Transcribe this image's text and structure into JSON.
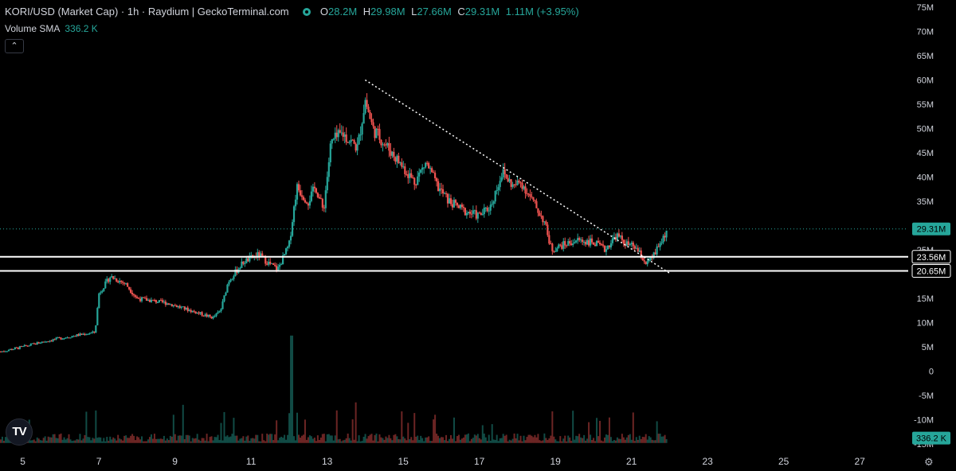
{
  "header": {
    "title": "KORI/USD (Market Cap) · 1h · Raydium | GeckoTerminal.com",
    "open_label": "O",
    "open_value": "28.2M",
    "high_label": "H",
    "high_value": "29.98M",
    "low_label": "L",
    "low_value": "27.66M",
    "close_label": "C",
    "close_value": "29.31M",
    "change_value": "1.11M (+3.95%)"
  },
  "volume_indicator": {
    "label": "Volume SMA",
    "value": "336.2 K"
  },
  "collapse_icon": "chevron-up-icon",
  "logo_text": "TV",
  "colors": {
    "up": "#26a69a",
    "down": "#ef5350",
    "background": "#000000",
    "trendline": "#ffffff"
  },
  "chart_data": {
    "type": "candlestick",
    "y_unit": "USD market cap",
    "y_ticks": [
      "75M",
      "70M",
      "65M",
      "60M",
      "55M",
      "50M",
      "45M",
      "40M",
      "35M",
      "30M",
      "25M",
      "15M",
      "10M",
      "5M",
      "0",
      "-5M",
      "-10M",
      "-15M"
    ],
    "ylim": [
      -15,
      75
    ],
    "x_ticks": [
      "5",
      "7",
      "9",
      "11",
      "13",
      "15",
      "17",
      "19",
      "21",
      "23",
      "25",
      "27"
    ],
    "x_range_days": [
      4.4,
      28.4
    ],
    "price_labels": [
      {
        "text": "29.31M",
        "value": 29.31,
        "style": "current"
      },
      {
        "text": "23.56M",
        "value": 23.56,
        "style": "horizontal-line"
      },
      {
        "text": "20.65M",
        "value": 20.65,
        "style": "horizontal-line"
      }
    ],
    "volume_label": "336.2 K",
    "trendline": {
      "from": [
        14.0,
        60.0
      ],
      "to": [
        22.0,
        20.2
      ],
      "style": "dotted"
    },
    "ohlc_anchors": [
      [
        4.4,
        4.0
      ],
      [
        5.0,
        5.0
      ],
      [
        5.5,
        6.0
      ],
      [
        6.0,
        6.8
      ],
      [
        6.5,
        7.5
      ],
      [
        6.9,
        8.0
      ],
      [
        7.0,
        16.0
      ],
      [
        7.3,
        19.5
      ],
      [
        7.7,
        18.0
      ],
      [
        8.0,
        15.0
      ],
      [
        8.4,
        14.5
      ],
      [
        8.8,
        14.0
      ],
      [
        9.2,
        13.0
      ],
      [
        9.6,
        12.0
      ],
      [
        10.0,
        11.0
      ],
      [
        10.2,
        12.5
      ],
      [
        10.4,
        18.5
      ],
      [
        10.8,
        22.5
      ],
      [
        11.2,
        24.0
      ],
      [
        11.5,
        22.0
      ],
      [
        11.7,
        21.0
      ],
      [
        12.0,
        26.0
      ],
      [
        12.2,
        38.0
      ],
      [
        12.5,
        35.0
      ],
      [
        12.7,
        38.0
      ],
      [
        12.9,
        33.0
      ],
      [
        13.1,
        47.0
      ],
      [
        13.4,
        49.0
      ],
      [
        13.8,
        46.0
      ],
      [
        14.0,
        56.0
      ],
      [
        14.2,
        50.0
      ],
      [
        14.4,
        48.0
      ],
      [
        14.7,
        45.0
      ],
      [
        15.0,
        42.0
      ],
      [
        15.3,
        39.0
      ],
      [
        15.6,
        43.0
      ],
      [
        15.9,
        38.0
      ],
      [
        16.2,
        35.0
      ],
      [
        16.6,
        33.0
      ],
      [
        17.0,
        32.0
      ],
      [
        17.3,
        34.0
      ],
      [
        17.6,
        41.0
      ],
      [
        17.9,
        38.0
      ],
      [
        18.1,
        39.0
      ],
      [
        18.4,
        35.0
      ],
      [
        18.7,
        31.0
      ],
      [
        18.9,
        25.0
      ],
      [
        19.2,
        26.0
      ],
      [
        19.6,
        27.0
      ],
      [
        20.0,
        26.5
      ],
      [
        20.3,
        25.0
      ],
      [
        20.6,
        28.0
      ],
      [
        20.9,
        26.0
      ],
      [
        21.1,
        25.5
      ],
      [
        21.4,
        22.0
      ],
      [
        21.6,
        24.0
      ],
      [
        21.8,
        27.0
      ],
      [
        21.95,
        29.31
      ]
    ]
  }
}
